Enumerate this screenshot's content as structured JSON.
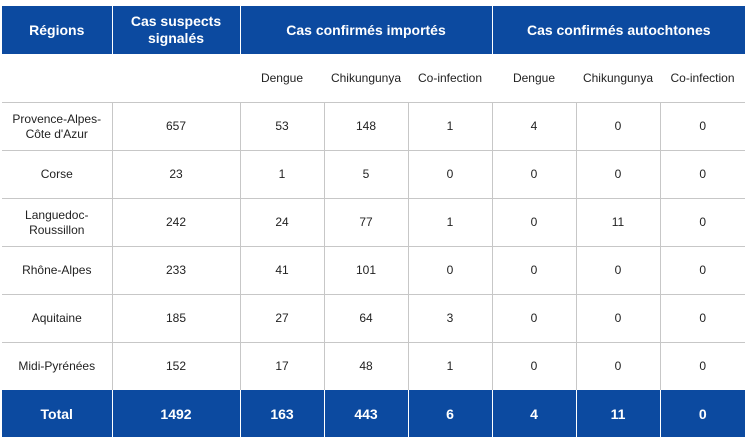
{
  "header": {
    "regions": "Régions",
    "suspects": "Cas suspects signalés",
    "imported": "Cas confirmés importés",
    "autochthonous": "Cas confirmés autochtones"
  },
  "subheader": [
    "Dengue",
    "Chikungunya",
    "Co-infection",
    "Dengue",
    "Chikungunya",
    "Co-infection"
  ],
  "rows": [
    {
      "region": "Provence-Alpes-Côte d'Azur",
      "values": [
        "657",
        "53",
        "148",
        "1",
        "4",
        "0",
        "0"
      ]
    },
    {
      "region": "Corse",
      "values": [
        "23",
        "1",
        "5",
        "0",
        "0",
        "0",
        "0"
      ]
    },
    {
      "region": "Languedoc-Roussillon",
      "values": [
        "242",
        "24",
        "77",
        "1",
        "0",
        "11",
        "0"
      ]
    },
    {
      "region": "Rhône-Alpes",
      "values": [
        "233",
        "41",
        "101",
        "0",
        "0",
        "0",
        "0"
      ]
    },
    {
      "region": "Aquitaine",
      "values": [
        "185",
        "27",
        "64",
        "3",
        "0",
        "0",
        "0"
      ]
    },
    {
      "region": "Midi-Pyrénées",
      "values": [
        "152",
        "17",
        "48",
        "1",
        "0",
        "0",
        "0"
      ]
    }
  ],
  "total": {
    "label": "Total",
    "values": [
      "1492",
      "163",
      "443",
      "6",
      "4",
      "11",
      "0"
    ]
  },
  "colors": {
    "header_bg": "#0c4aa0",
    "header_text": "#ffffff",
    "rule": "#c7c7c7"
  }
}
